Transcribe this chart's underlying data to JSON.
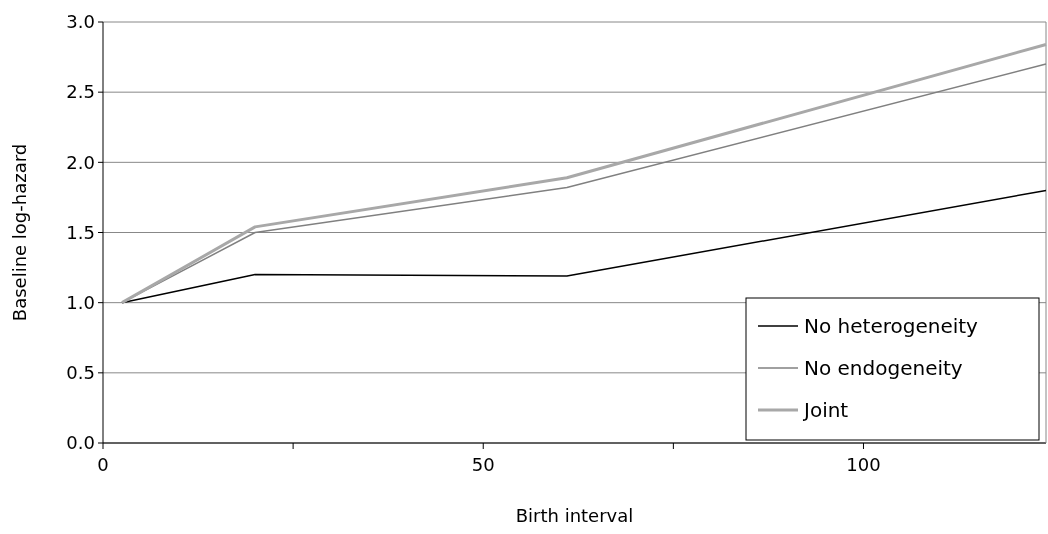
{
  "chart_data": {
    "type": "line",
    "xlabel": "Birth interval",
    "ylabel": "Baseline log-hazard",
    "xlim": [
      0,
      124
    ],
    "xticks": [
      0,
      {
        "value": 25,
        "label": null
      },
      50,
      {
        "value": 75,
        "label": null
      },
      100
    ],
    "ylim": [
      0,
      3
    ],
    "yticks": [
      {
        "value": 0,
        "label": "0.0"
      },
      0.5,
      {
        "value": 1,
        "label": "1.0"
      },
      1.5,
      {
        "value": 2,
        "label": "2.0"
      },
      2.5,
      {
        "value": 3,
        "label": "3.0"
      }
    ],
    "grid": "y",
    "legend": "bottom right",
    "x": [
      2.5,
      20,
      61,
      124
    ],
    "series": [
      {
        "name": "No heterogeneity",
        "color": "#000000",
        "values": [
          1.0,
          1.2,
          1.19,
          1.8
        ]
      },
      {
        "name": "No endogeneity",
        "color": "#808080",
        "values": [
          1.0,
          1.5,
          1.82,
          2.7
        ]
      },
      {
        "name": "Joint",
        "color": "#a8a8a8",
        "values": [
          1.0,
          1.54,
          1.89,
          2.84
        ]
      }
    ]
  }
}
